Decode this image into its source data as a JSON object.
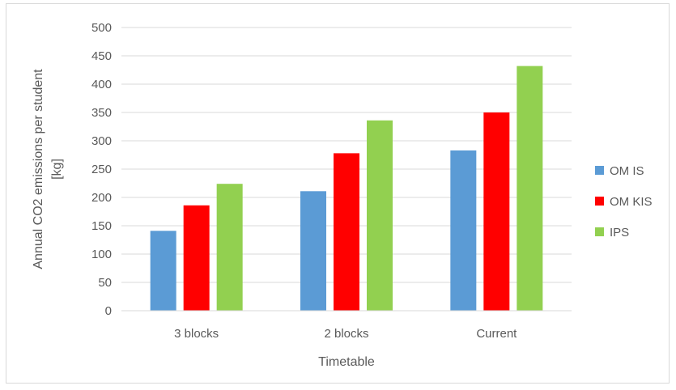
{
  "chart_data": {
    "type": "bar",
    "categories": [
      "3 blocks",
      "2 blocks",
      "Current"
    ],
    "series": [
      {
        "name": "OM IS",
        "color": "#5b9bd5",
        "values": [
          141,
          211,
          283
        ]
      },
      {
        "name": "OM KIS",
        "color": "#ff0000",
        "values": [
          186,
          278,
          350
        ]
      },
      {
        "name": "IPS",
        "color": "#92d050",
        "values": [
          224,
          336,
          432
        ]
      }
    ],
    "title": "",
    "xlabel": "Timetable",
    "ylabel_lines": [
      "Annual CO2  emissions per student",
      "[kg]"
    ],
    "ylim": [
      0,
      500
    ],
    "yticks": [
      0,
      50,
      100,
      150,
      200,
      250,
      300,
      350,
      400,
      450,
      500
    ],
    "grid": true,
    "legend_position": "right"
  }
}
